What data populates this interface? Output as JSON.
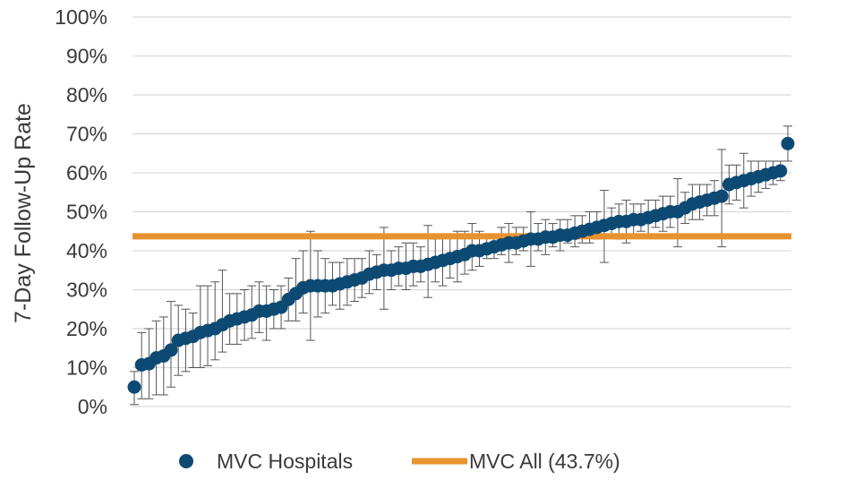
{
  "chart_data": {
    "type": "scatter",
    "title": "",
    "xlabel": "",
    "ylabel": "7-Day Follow-Up Rate",
    "ylim": [
      0,
      100
    ],
    "yticks": [
      "0%",
      "10%",
      "20%",
      "30%",
      "40%",
      "50%",
      "60%",
      "70%",
      "80%",
      "90%",
      "100%"
    ],
    "grid": true,
    "legend_position": "bottom",
    "colors": {
      "points": "#0d4a73",
      "reference": "#e8922f",
      "grid": "#d9d9d9",
      "error_bars": "#555555"
    },
    "series": [
      {
        "name": "MVC Hospitals",
        "kind": "points_with_error_bars",
        "values": [
          5.0,
          10.7,
          11.0,
          12.5,
          13.0,
          14.5,
          17.0,
          17.5,
          18.0,
          19.0,
          19.5,
          20.0,
          21.0,
          22.0,
          22.5,
          23.0,
          23.5,
          24.5,
          24.5,
          25.0,
          25.5,
          27.5,
          29.0,
          30.5,
          31.0,
          31.0,
          31.0,
          31.0,
          31.5,
          32.0,
          32.5,
          33.0,
          34.0,
          34.5,
          35.0,
          35.0,
          35.5,
          35.5,
          36.0,
          36.0,
          36.5,
          37.0,
          37.5,
          38.0,
          38.5,
          39.0,
          40.0,
          40.0,
          40.5,
          41.0,
          41.5,
          42.0,
          42.0,
          42.5,
          43.0,
          43.0,
          43.5,
          43.5,
          44.0,
          44.0,
          44.5,
          45.0,
          45.5,
          46.0,
          46.5,
          47.0,
          47.5,
          47.5,
          48.0,
          48.0,
          48.5,
          49.0,
          49.5,
          50.0,
          50.0,
          51.0,
          52.0,
          52.5,
          53.0,
          53.5,
          54.0,
          57.0,
          57.5,
          58.0,
          58.5,
          59.0,
          59.5,
          60.0,
          60.5,
          67.5
        ],
        "lower": [
          0.5,
          2.0,
          2.0,
          3.0,
          3.0,
          5.0,
          8.0,
          9.0,
          10.0,
          10.0,
          10.5,
          12.0,
          14.0,
          16.0,
          16.0,
          17.0,
          17.5,
          19.0,
          17.0,
          20.0,
          20.0,
          22.0,
          22.0,
          24.0,
          17.0,
          23.0,
          24.0,
          26.0,
          25.0,
          26.0,
          27.0,
          28.0,
          29.0,
          30.0,
          25.0,
          30.0,
          31.0,
          30.0,
          31.0,
          32.0,
          28.0,
          32.0,
          31.0,
          33.0,
          32.0,
          34.0,
          35.0,
          36.0,
          38.0,
          38.0,
          39.0,
          37.0,
          39.0,
          40.0,
          36.0,
          40.0,
          39.0,
          41.0,
          40.0,
          42.0,
          41.0,
          42.0,
          42.0,
          43.0,
          37.0,
          44.0,
          43.0,
          42.0,
          44.0,
          45.0,
          44.0,
          46.0,
          45.0,
          46.0,
          41.0,
          47.0,
          48.0,
          48.0,
          49.0,
          49.0,
          41.0,
          52.0,
          53.0,
          51.0,
          54.0,
          55.0,
          56.0,
          57.0,
          58.0,
          63.0
        ],
        "upper": [
          9.0,
          19.0,
          20.0,
          22.0,
          23.0,
          27.0,
          26.0,
          25.0,
          24.0,
          31.0,
          31.0,
          32.0,
          35.0,
          29.0,
          29.0,
          30.0,
          31.0,
          32.0,
          31.0,
          30.0,
          31.0,
          33.0,
          38.0,
          40.0,
          45.0,
          40.0,
          38.0,
          37.0,
          37.0,
          38.0,
          38.0,
          38.0,
          40.0,
          39.0,
          46.0,
          40.0,
          41.0,
          42.0,
          42.0,
          41.0,
          46.5,
          43.0,
          44.0,
          44.0,
          45.0,
          45.0,
          47.0,
          45.0,
          44.0,
          44.0,
          46.0,
          47.0,
          46.0,
          46.0,
          50.0,
          47.0,
          48.0,
          47.0,
          48.0,
          48.0,
          49.0,
          49.0,
          50.0,
          50.0,
          55.5,
          51.0,
          52.0,
          53.0,
          52.0,
          52.0,
          53.0,
          53.0,
          54.0,
          54.0,
          58.5,
          55.0,
          57.0,
          57.0,
          57.0,
          58.0,
          66.0,
          62.0,
          62.0,
          65.0,
          63.0,
          63.0,
          63.0,
          63.0,
          63.0,
          72.0
        ]
      },
      {
        "name": "MVC All (43.7%)",
        "kind": "reference_line",
        "value": 43.7
      }
    ]
  }
}
